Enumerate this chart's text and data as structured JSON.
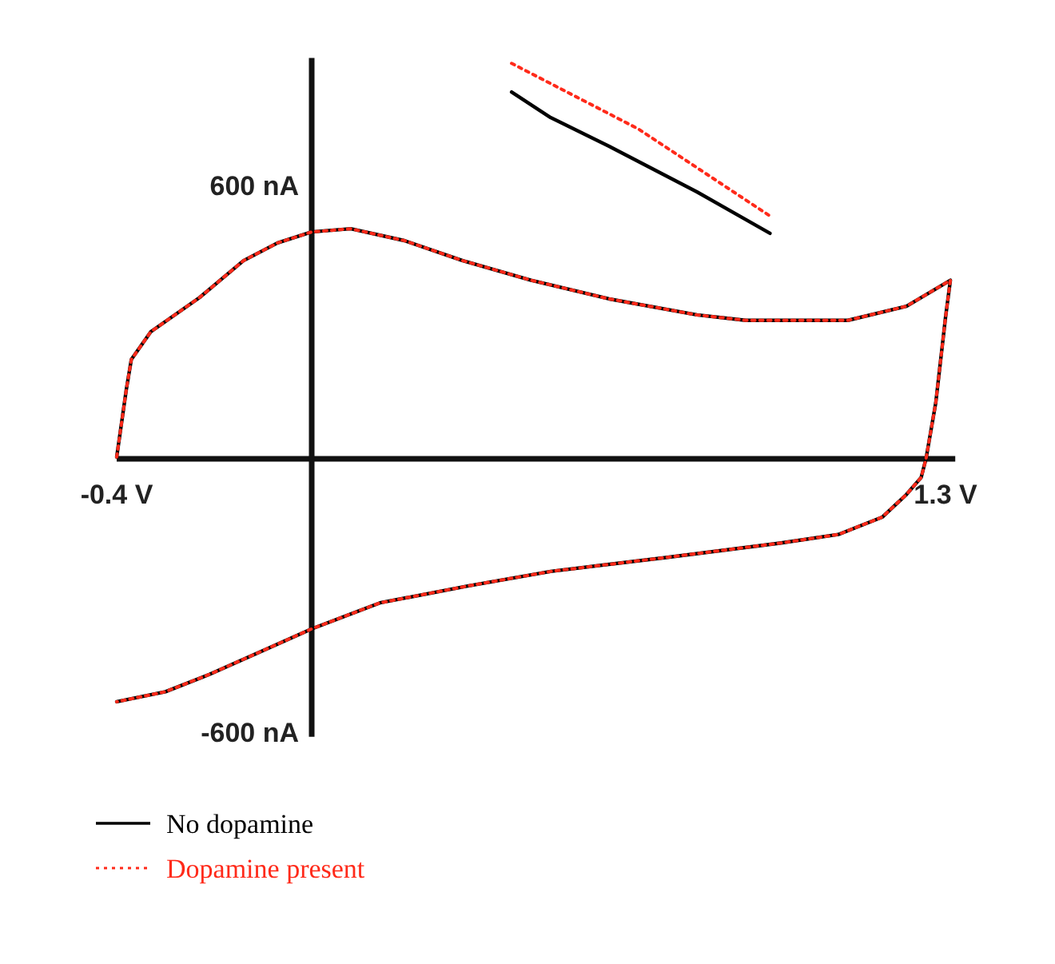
{
  "chart_data": {
    "type": "line",
    "xlim": [
      -0.4,
      1.32
    ],
    "ylim": [
      -610,
      880
    ],
    "xticks": [
      {
        "value": -0.4,
        "label": "-0.4 V"
      },
      {
        "value": 1.3,
        "label": "1.3 V"
      }
    ],
    "yticks": [
      {
        "value": 600,
        "label": "600 nA"
      },
      {
        "value": -600,
        "label": "-600 nA"
      }
    ],
    "grid": false,
    "legend": "bottom left",
    "marker": "none",
    "series": [
      {
        "name": "No dopamine",
        "color": "#000000",
        "line_style": "solid",
        "x": [
          -0.4,
          -0.38,
          -0.37,
          -0.33,
          -0.23,
          -0.14,
          -0.07,
          0,
          0.08,
          0.19,
          0.31,
          0.45,
          0.61,
          0.79,
          0.89,
          1.1,
          1.22,
          1.31,
          1.3,
          1.28,
          1.26,
          1.25,
          1.22,
          1.17,
          1.08,
          0.96,
          0.73,
          0.49,
          0.32,
          0.14,
          0,
          -0.09,
          -0.21,
          -0.3,
          -0.4,
          null,
          0.41,
          0.49,
          0.61,
          0.79,
          0.94
        ],
        "values": [
          4,
          154,
          218,
          279,
          354,
          435,
          474,
          498,
          505,
          479,
          435,
          392,
          351,
          316,
          304,
          304,
          335,
          392,
          310,
          123,
          0,
          -41,
          -78,
          -128,
          -166,
          -185,
          -216,
          -247,
          -279,
          -316,
          -373,
          -416,
          -473,
          -511,
          -533,
          null,
          805,
          749,
          686,
          586,
          495
        ]
      },
      {
        "name": "Dopamine present",
        "color": "#ff2a1a",
        "line_style": "dotted",
        "x": [
          -0.4,
          -0.38,
          -0.37,
          -0.33,
          -0.23,
          -0.14,
          -0.07,
          0,
          0.08,
          0.19,
          0.31,
          0.45,
          0.61,
          0.79,
          0.89,
          1.1,
          1.22,
          1.31,
          1.3,
          1.28,
          1.26,
          1.25,
          1.22,
          1.17,
          1.08,
          0.96,
          0.73,
          0.49,
          0.32,
          0.14,
          0,
          -0.09,
          -0.21,
          -0.3,
          -0.4,
          null,
          0.41,
          0.67,
          0.94
        ],
        "values": [
          4,
          154,
          218,
          279,
          354,
          435,
          474,
          498,
          505,
          479,
          435,
          392,
          351,
          316,
          304,
          304,
          335,
          392,
          310,
          123,
          0,
          -41,
          -78,
          -128,
          -166,
          -185,
          -216,
          -247,
          -279,
          -316,
          -373,
          -416,
          -473,
          -511,
          -533,
          null,
          868,
          724,
          533
        ]
      }
    ]
  }
}
